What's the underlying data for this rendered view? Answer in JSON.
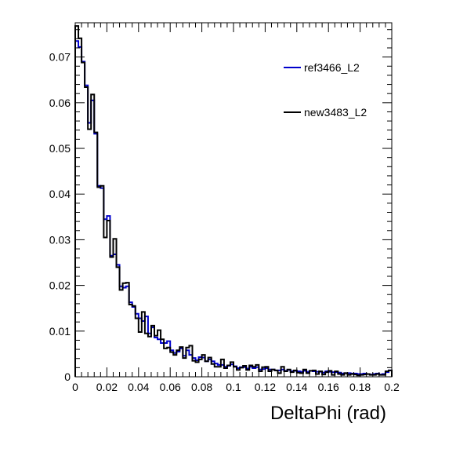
{
  "chart_data": {
    "type": "line",
    "title": "",
    "xlabel": "DeltaPhi (rad)",
    "ylabel": "",
    "xlim": [
      0,
      0.2
    ],
    "ylim": [
      0,
      0.0775
    ],
    "x_ticks": [
      "0",
      "0.02",
      "0.04",
      "0.06",
      "0.08",
      "0.1",
      "0.12",
      "0.14",
      "0.16",
      "0.18",
      "0.2"
    ],
    "y_ticks": [
      "0",
      "0.01",
      "0.02",
      "0.03",
      "0.04",
      "0.05",
      "0.06",
      "0.07"
    ],
    "bin_width": 0.002,
    "grid": false,
    "legend_position": "top-right",
    "series": [
      {
        "name": "ref3466_L2",
        "color": "#0000cc",
        "values": [
          0.0735,
          0.0722,
          0.069,
          0.0638,
          0.0556,
          0.0605,
          0.0532,
          0.0418,
          0.0413,
          0.0345,
          0.0352,
          0.0265,
          0.0268,
          0.0245,
          0.0198,
          0.0195,
          0.0198,
          0.0163,
          0.0153,
          0.0138,
          0.0128,
          0.0122,
          0.0132,
          0.0095,
          0.0108,
          0.0086,
          0.0082,
          0.0074,
          0.0074,
          0.0078,
          0.0058,
          0.0052,
          0.0055,
          0.0062,
          0.0046,
          0.0058,
          0.0048,
          0.0041,
          0.0036,
          0.0043,
          0.0042,
          0.0034,
          0.0038,
          0.0034,
          0.0029,
          0.0026,
          0.0026,
          0.0022,
          0.0024,
          0.0027,
          0.0023,
          0.0019,
          0.0021,
          0.0021,
          0.0018,
          0.0022,
          0.0019,
          0.0021,
          0.0016,
          0.0017,
          0.0019,
          0.0016,
          0.0016,
          0.0014,
          0.0014,
          0.0016,
          0.0013,
          0.0015,
          0.0012,
          0.0013,
          0.0012,
          0.0011,
          0.0013,
          0.0011,
          0.0013,
          0.0012,
          0.0011,
          0.0011,
          0.0009,
          0.0012,
          0.0011,
          0.001,
          0.001,
          0.0009,
          0.0007,
          0.0008,
          0.0008,
          0.0007,
          0.0007,
          0.0006,
          0.0006,
          0.0007,
          0.0006,
          0.0005,
          0.0006,
          0.0007,
          0.0005,
          0.0006,
          0.001,
          0.0014
        ]
      },
      {
        "name": "new3483_L2",
        "color": "#000000",
        "values": [
          0.0768,
          0.0741,
          0.0688,
          0.0634,
          0.0542,
          0.0618,
          0.0535,
          0.0415,
          0.0418,
          0.0305,
          0.0342,
          0.0262,
          0.0302,
          0.024,
          0.019,
          0.0205,
          0.0206,
          0.0158,
          0.0155,
          0.0128,
          0.0098,
          0.0142,
          0.0095,
          0.0088,
          0.0112,
          0.009,
          0.0102,
          0.0082,
          0.0062,
          0.0064,
          0.0054,
          0.0048,
          0.0058,
          0.0065,
          0.0041,
          0.0064,
          0.0068,
          0.0035,
          0.0032,
          0.0038,
          0.0048,
          0.0034,
          0.0042,
          0.0028,
          0.0022,
          0.0022,
          0.0038,
          0.0019,
          0.0025,
          0.0032,
          0.0022,
          0.0015,
          0.002,
          0.0024,
          0.0015,
          0.0025,
          0.0022,
          0.0026,
          0.0012,
          0.0021,
          0.0022,
          0.0012,
          0.0016,
          0.0014,
          0.0008,
          0.0022,
          0.0012,
          0.0016,
          0.001,
          0.0014,
          0.0009,
          0.0008,
          0.0016,
          0.0008,
          0.0013,
          0.0014,
          0.0006,
          0.0012,
          0.0005,
          0.001,
          0.0013,
          0.0004,
          0.0012,
          0.0006,
          0.0004,
          0.0008,
          0.0004,
          0.0006,
          0.0005,
          0.0003,
          0.0004,
          0.0005,
          0.0006,
          0.0004,
          0.0004,
          0.0006,
          0.0004,
          0.0004,
          0.0012,
          0.0014
        ]
      }
    ]
  }
}
